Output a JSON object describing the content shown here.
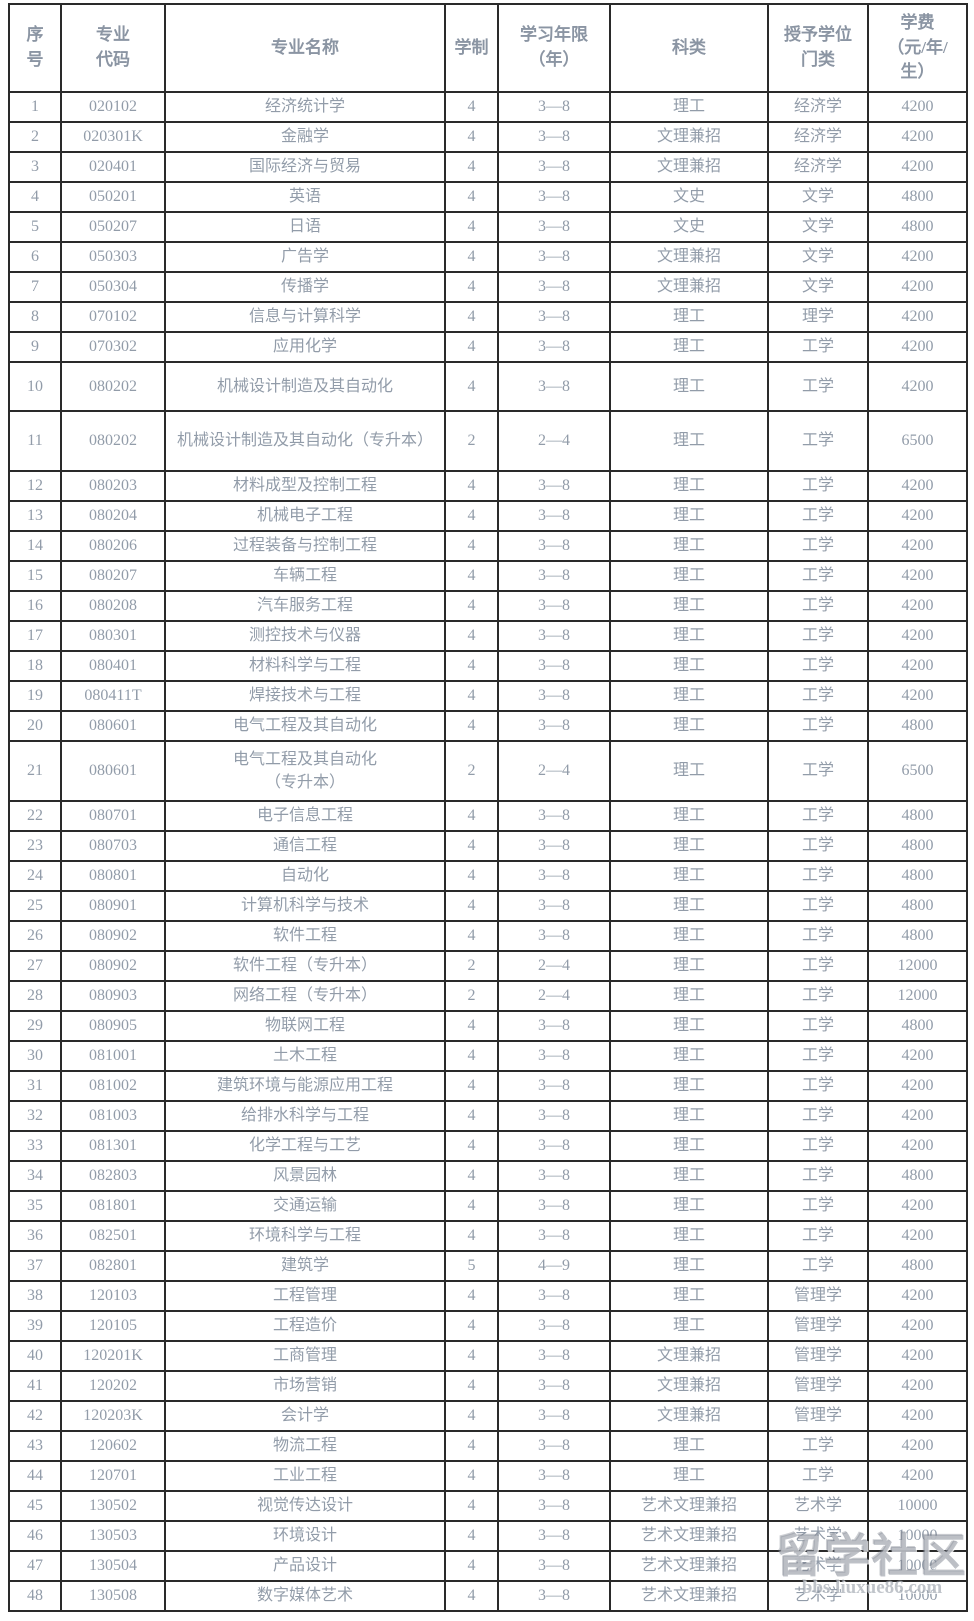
{
  "table": {
    "headers": [
      "序\n号",
      "专业\n代码",
      "专业名称",
      "学制",
      "学习年限\n（年）",
      "科类",
      "授予学位\n门类",
      "学费\n（元/年/\n生）"
    ],
    "fields": [
      "no",
      "code",
      "name",
      "duration",
      "years",
      "category",
      "degree",
      "tuition"
    ],
    "rows": [
      {
        "no": "1",
        "code": "020102",
        "name": "经济统计学",
        "duration": "4",
        "years": "3—8",
        "category": "理工",
        "degree": "经济学",
        "tuition": "4200"
      },
      {
        "no": "2",
        "code": "020301K",
        "name": "金融学",
        "duration": "4",
        "years": "3—8",
        "category": "文理兼招",
        "degree": "经济学",
        "tuition": "4200"
      },
      {
        "no": "3",
        "code": "020401",
        "name": "国际经济与贸易",
        "duration": "4",
        "years": "3—8",
        "category": "文理兼招",
        "degree": "经济学",
        "tuition": "4200"
      },
      {
        "no": "4",
        "code": "050201",
        "name": "英语",
        "duration": "4",
        "years": "3—8",
        "category": "文史",
        "degree": "文学",
        "tuition": "4800"
      },
      {
        "no": "5",
        "code": "050207",
        "name": "日语",
        "duration": "4",
        "years": "3—8",
        "category": "文史",
        "degree": "文学",
        "tuition": "4800"
      },
      {
        "no": "6",
        "code": "050303",
        "name": "广告学",
        "duration": "4",
        "years": "3—8",
        "category": "文理兼招",
        "degree": "文学",
        "tuition": "4200"
      },
      {
        "no": "7",
        "code": "050304",
        "name": "传播学",
        "duration": "4",
        "years": "3—8",
        "category": "文理兼招",
        "degree": "文学",
        "tuition": "4200"
      },
      {
        "no": "8",
        "code": "070102",
        "name": "信息与计算科学",
        "duration": "4",
        "years": "3—8",
        "category": "理工",
        "degree": "理学",
        "tuition": "4200"
      },
      {
        "no": "9",
        "code": "070302",
        "name": "应用化学",
        "duration": "4",
        "years": "3—8",
        "category": "理工",
        "degree": "工学",
        "tuition": "4200"
      },
      {
        "no": "10",
        "code": "080202",
        "name": "机械设计制造及其自动化",
        "duration": "4",
        "years": "3—8",
        "category": "理工",
        "degree": "工学",
        "tuition": "4200"
      },
      {
        "no": "11",
        "code": "080202",
        "name": "机械设计制造及其自动化（专升本）",
        "duration": "2",
        "years": "2—4",
        "category": "理工",
        "degree": "工学",
        "tuition": "6500"
      },
      {
        "no": "12",
        "code": "080203",
        "name": "材料成型及控制工程",
        "duration": "4",
        "years": "3—8",
        "category": "理工",
        "degree": "工学",
        "tuition": "4200"
      },
      {
        "no": "13",
        "code": "080204",
        "name": "机械电子工程",
        "duration": "4",
        "years": "3—8",
        "category": "理工",
        "degree": "工学",
        "tuition": "4200"
      },
      {
        "no": "14",
        "code": "080206",
        "name": "过程装备与控制工程",
        "duration": "4",
        "years": "3—8",
        "category": "理工",
        "degree": "工学",
        "tuition": "4200"
      },
      {
        "no": "15",
        "code": "080207",
        "name": "车辆工程",
        "duration": "4",
        "years": "3—8",
        "category": "理工",
        "degree": "工学",
        "tuition": "4200"
      },
      {
        "no": "16",
        "code": "080208",
        "name": "汽车服务工程",
        "duration": "4",
        "years": "3—8",
        "category": "理工",
        "degree": "工学",
        "tuition": "4200"
      },
      {
        "no": "17",
        "code": "080301",
        "name": "测控技术与仪器",
        "duration": "4",
        "years": "3—8",
        "category": "理工",
        "degree": "工学",
        "tuition": "4200"
      },
      {
        "no": "18",
        "code": "080401",
        "name": "材料科学与工程",
        "duration": "4",
        "years": "3—8",
        "category": "理工",
        "degree": "工学",
        "tuition": "4200"
      },
      {
        "no": "19",
        "code": "080411T",
        "name": "焊接技术与工程",
        "duration": "4",
        "years": "3—8",
        "category": "理工",
        "degree": "工学",
        "tuition": "4200"
      },
      {
        "no": "20",
        "code": "080601",
        "name": "电气工程及其自动化",
        "duration": "4",
        "years": "3—8",
        "category": "理工",
        "degree": "工学",
        "tuition": "4800"
      },
      {
        "no": "21",
        "code": "080601",
        "name": "电气工程及其自动化\n（专升本）",
        "duration": "2",
        "years": "2—4",
        "category": "理工",
        "degree": "工学",
        "tuition": "6500"
      },
      {
        "no": "22",
        "code": "080701",
        "name": "电子信息工程",
        "duration": "4",
        "years": "3—8",
        "category": "理工",
        "degree": "工学",
        "tuition": "4800"
      },
      {
        "no": "23",
        "code": "080703",
        "name": "通信工程",
        "duration": "4",
        "years": "3—8",
        "category": "理工",
        "degree": "工学",
        "tuition": "4800"
      },
      {
        "no": "24",
        "code": "080801",
        "name": "自动化",
        "duration": "4",
        "years": "3—8",
        "category": "理工",
        "degree": "工学",
        "tuition": "4800"
      },
      {
        "no": "25",
        "code": "080901",
        "name": "计算机科学与技术",
        "duration": "4",
        "years": "3—8",
        "category": "理工",
        "degree": "工学",
        "tuition": "4800"
      },
      {
        "no": "26",
        "code": "080902",
        "name": "软件工程",
        "duration": "4",
        "years": "3—8",
        "category": "理工",
        "degree": "工学",
        "tuition": "4800"
      },
      {
        "no": "27",
        "code": "080902",
        "name": "软件工程（专升本）",
        "duration": "2",
        "years": "2—4",
        "category": "理工",
        "degree": "工学",
        "tuition": "12000"
      },
      {
        "no": "28",
        "code": "080903",
        "name": "网络工程（专升本）",
        "duration": "2",
        "years": "2—4",
        "category": "理工",
        "degree": "工学",
        "tuition": "12000"
      },
      {
        "no": "29",
        "code": "080905",
        "name": "物联网工程",
        "duration": "4",
        "years": "3—8",
        "category": "理工",
        "degree": "工学",
        "tuition": "4800"
      },
      {
        "no": "30",
        "code": "081001",
        "name": "土木工程",
        "duration": "4",
        "years": "3—8",
        "category": "理工",
        "degree": "工学",
        "tuition": "4200"
      },
      {
        "no": "31",
        "code": "081002",
        "name": "建筑环境与能源应用工程",
        "duration": "4",
        "years": "3—8",
        "category": "理工",
        "degree": "工学",
        "tuition": "4200"
      },
      {
        "no": "32",
        "code": "081003",
        "name": "给排水科学与工程",
        "duration": "4",
        "years": "3—8",
        "category": "理工",
        "degree": "工学",
        "tuition": "4200"
      },
      {
        "no": "33",
        "code": "081301",
        "name": "化学工程与工艺",
        "duration": "4",
        "years": "3—8",
        "category": "理工",
        "degree": "工学",
        "tuition": "4200"
      },
      {
        "no": "34",
        "code": "082803",
        "name": "风景园林",
        "duration": "4",
        "years": "3—8",
        "category": "理工",
        "degree": "工学",
        "tuition": "4800"
      },
      {
        "no": "35",
        "code": "081801",
        "name": "交通运输",
        "duration": "4",
        "years": "3—8",
        "category": "理工",
        "degree": "工学",
        "tuition": "4200"
      },
      {
        "no": "36",
        "code": "082501",
        "name": "环境科学与工程",
        "duration": "4",
        "years": "3—8",
        "category": "理工",
        "degree": "工学",
        "tuition": "4200"
      },
      {
        "no": "37",
        "code": "082801",
        "name": "建筑学",
        "duration": "5",
        "years": "4—9",
        "category": "理工",
        "degree": "工学",
        "tuition": "4800"
      },
      {
        "no": "38",
        "code": "120103",
        "name": "工程管理",
        "duration": "4",
        "years": "3—8",
        "category": "理工",
        "degree": "管理学",
        "tuition": "4200"
      },
      {
        "no": "39",
        "code": "120105",
        "name": "工程造价",
        "duration": "4",
        "years": "3—8",
        "category": "理工",
        "degree": "管理学",
        "tuition": "4200"
      },
      {
        "no": "40",
        "code": "120201K",
        "name": "工商管理",
        "duration": "4",
        "years": "3—8",
        "category": "文理兼招",
        "degree": "管理学",
        "tuition": "4200"
      },
      {
        "no": "41",
        "code": "120202",
        "name": "市场营销",
        "duration": "4",
        "years": "3—8",
        "category": "文理兼招",
        "degree": "管理学",
        "tuition": "4200"
      },
      {
        "no": "42",
        "code": "120203K",
        "name": "会计学",
        "duration": "4",
        "years": "3—8",
        "category": "文理兼招",
        "degree": "管理学",
        "tuition": "4200"
      },
      {
        "no": "43",
        "code": "120602",
        "name": "物流工程",
        "duration": "4",
        "years": "3—8",
        "category": "理工",
        "degree": "工学",
        "tuition": "4200"
      },
      {
        "no": "44",
        "code": "120701",
        "name": "工业工程",
        "duration": "4",
        "years": "3—8",
        "category": "理工",
        "degree": "工学",
        "tuition": "4200"
      },
      {
        "no": "45",
        "code": "130502",
        "name": "视觉传达设计",
        "duration": "4",
        "years": "3—8",
        "category": "艺术文理兼招",
        "degree": "艺术学",
        "tuition": "10000"
      },
      {
        "no": "46",
        "code": "130503",
        "name": "环境设计",
        "duration": "4",
        "years": "3—8",
        "category": "艺术文理兼招",
        "degree": "艺术学",
        "tuition": "10000"
      },
      {
        "no": "47",
        "code": "130504",
        "name": "产品设计",
        "duration": "4",
        "years": "3—8",
        "category": "艺术文理兼招",
        "degree": "艺术学",
        "tuition": "10000"
      },
      {
        "no": "48",
        "code": "130508",
        "name": "数字媒体艺术",
        "duration": "4",
        "years": "3—8",
        "category": "艺术文理兼招",
        "degree": "艺术学",
        "tuition": "10000"
      }
    ]
  },
  "watermark": {
    "title": "留学社区",
    "url": "bbs.liuxue86.com"
  },
  "colors": {
    "body_text": "#929ca9",
    "header_text": "#8b95a3",
    "border": "#2a2a2a",
    "watermark": "#8c929c"
  }
}
